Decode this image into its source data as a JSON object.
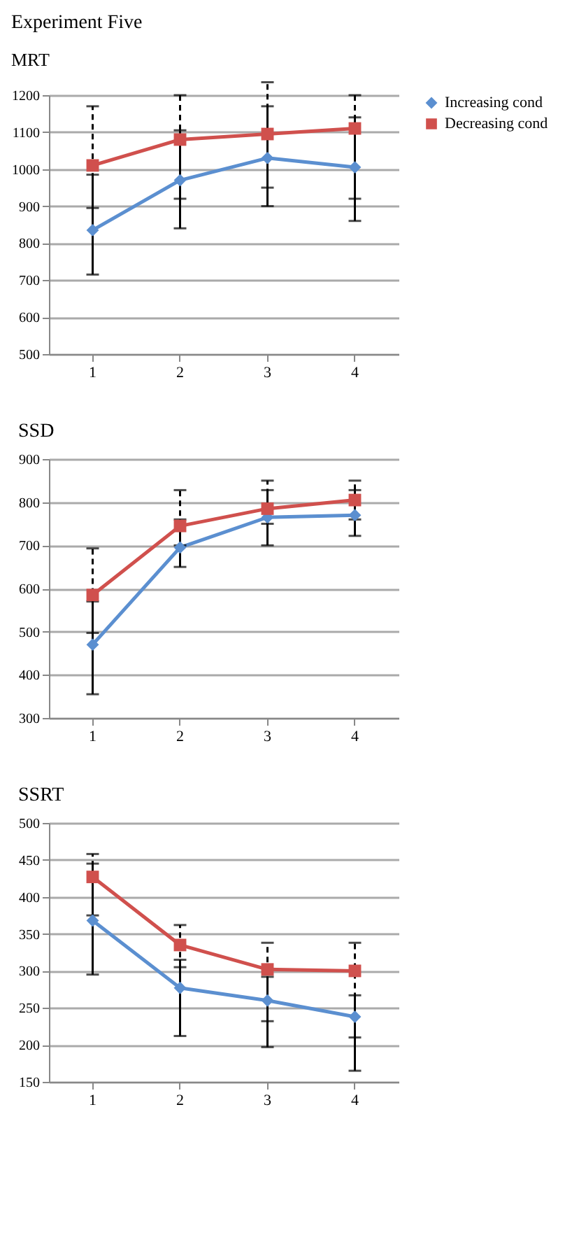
{
  "chart_data": [
    {
      "type": "line",
      "title": "Experiment Five",
      "subtitle": "MRT",
      "categories": [
        "1",
        "2",
        "3",
        "4"
      ],
      "ylim": [
        500,
        1200
      ],
      "yticks": [
        500,
        600,
        700,
        800,
        900,
        1000,
        1100,
        1200
      ],
      "grid": "y",
      "legend": "right",
      "line_style": "solid",
      "series": [
        {
          "name": "Increasing cond",
          "color": "#5b8fd0",
          "marker": "diamond",
          "values": [
            835,
            970,
            1030,
            1005
          ],
          "errors": [
            [
              715,
              985
            ],
            [
              840,
              1105
            ],
            [
              900,
              1170
            ],
            [
              860,
              1140
            ]
          ]
        },
        {
          "name": "Decreasing cond",
          "color": "#d0504d",
          "marker": "square",
          "values": [
            1010,
            1080,
            1095,
            1110
          ],
          "errors": [
            [
              895,
              1170
            ],
            [
              920,
              1200
            ],
            [
              950,
              1235
            ],
            [
              920,
              1200
            ]
          ]
        }
      ]
    },
    {
      "type": "line",
      "title": "SSD",
      "categories": [
        "1",
        "2",
        "3",
        "4"
      ],
      "ylim": [
        300,
        900
      ],
      "yticks": [
        300,
        400,
        500,
        600,
        700,
        800,
        900
      ],
      "grid": "y",
      "legend": false,
      "line_style": "solid",
      "series": [
        {
          "color": "#5b8fd0",
          "marker": "diamond",
          "values": [
            470,
            695,
            765,
            770
          ],
          "errors": [
            [
              355,
              570
            ],
            [
              650,
              760
            ],
            [
              700,
              828
            ],
            [
              722,
              828
            ]
          ]
        },
        {
          "color": "#d0504d",
          "marker": "square",
          "values": [
            585,
            745,
            785,
            805
          ],
          "errors": [
            [
              497,
              693
            ],
            [
              700,
              828
            ],
            [
              750,
              850
            ],
            [
              760,
              850
            ]
          ]
        }
      ]
    },
    {
      "type": "line",
      "title": "SSRT",
      "categories": [
        "1",
        "2",
        "3",
        "4"
      ],
      "ylim": [
        150,
        500
      ],
      "yticks": [
        150,
        200,
        250,
        300,
        350,
        400,
        450,
        500
      ],
      "grid": "y",
      "legend": false,
      "line_style": "solid",
      "series": [
        {
          "color": "#5b8fd0",
          "marker": "diamond",
          "values": [
            368,
            277,
            260,
            238
          ],
          "errors": [
            [
              295,
              445
            ],
            [
              212,
              315
            ],
            [
              197,
              292
            ],
            [
              165,
              267
            ]
          ]
        },
        {
          "color": "#d0504d",
          "marker": "square",
          "values": [
            427,
            335,
            302,
            300
          ],
          "errors": [
            [
              375,
              458
            ],
            [
              305,
              362
            ],
            [
              232,
              338
            ],
            [
              210,
              338
            ]
          ]
        }
      ]
    }
  ]
}
